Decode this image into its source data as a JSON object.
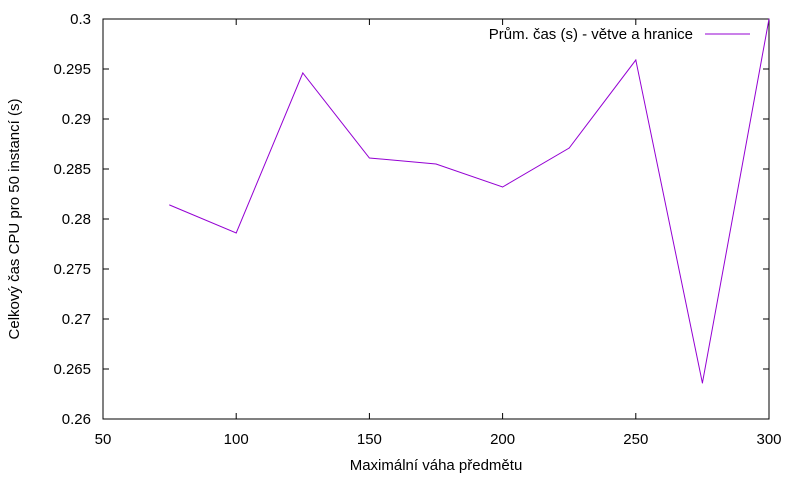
{
  "chart_data": {
    "type": "line",
    "title": "",
    "xlabel": "Maximální váha předmětu",
    "ylabel": "Celkový čas CPU pro 50 instancí (s)",
    "xlim": [
      50,
      300
    ],
    "ylim": [
      0.26,
      0.3
    ],
    "x_ticks": [
      50,
      100,
      150,
      200,
      250,
      300
    ],
    "y_ticks": [
      0.26,
      0.265,
      0.27,
      0.275,
      0.28,
      0.285,
      0.29,
      0.295,
      0.3
    ],
    "x_tick_labels": [
      "50",
      "100",
      "150",
      "200",
      "250",
      "300"
    ],
    "y_tick_labels": [
      "0.26",
      "0.265",
      "0.27",
      "0.275",
      "0.28",
      "0.285",
      "0.29",
      "0.295",
      "0.3"
    ],
    "grid": false,
    "legend_position": "top-right",
    "series": [
      {
        "name": "Prům. čas (s) - větve a hranice",
        "color": "#9400d3",
        "x": [
          75,
          100,
          125,
          150,
          175,
          200,
          225,
          250,
          275,
          300
        ],
        "values": [
          0.2814,
          0.2786,
          0.2946,
          0.2861,
          0.2855,
          0.2832,
          0.2871,
          0.2959,
          0.2636,
          0.3
        ]
      }
    ]
  }
}
